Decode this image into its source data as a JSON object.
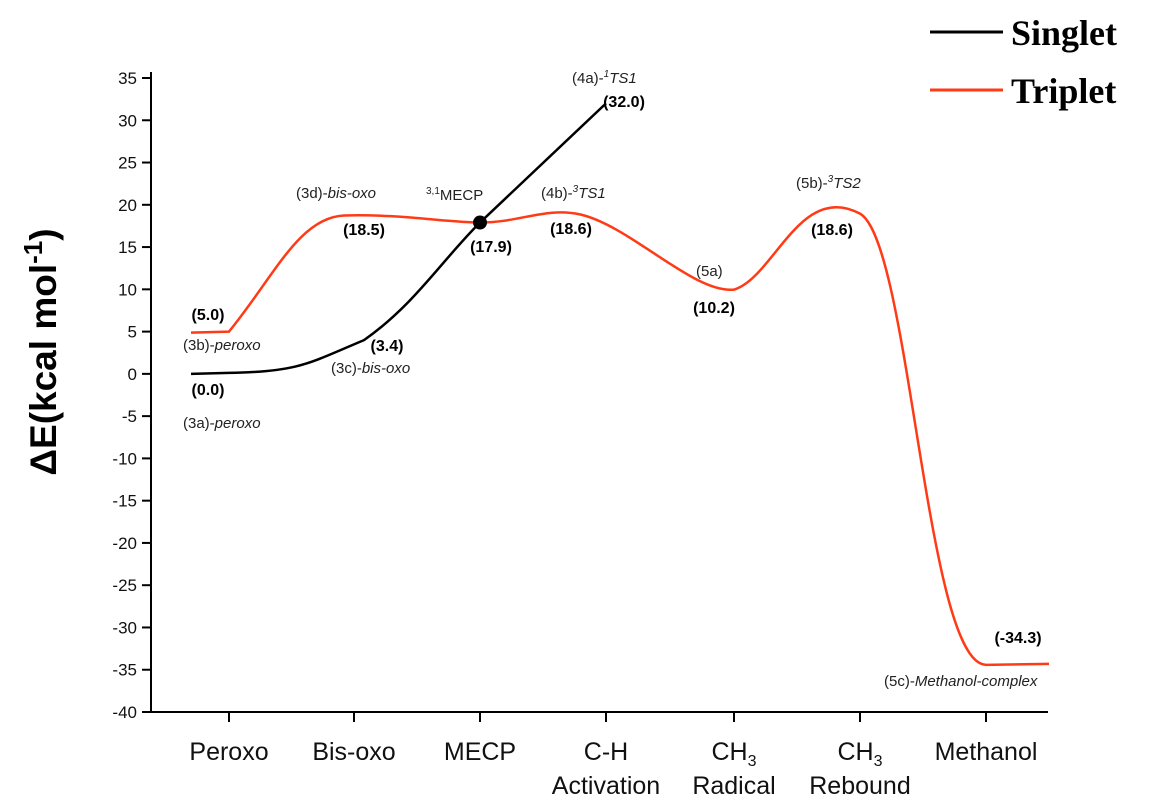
{
  "chart_data": {
    "type": "line",
    "title": "",
    "ylabel": {
      "main": "ΔE(kcal mol",
      "sup": "-1",
      "close": ")"
    },
    "xlabel": "",
    "ylim": [
      -40,
      35
    ],
    "yticks": [
      35,
      30,
      25,
      20,
      15,
      10,
      5,
      0,
      -5,
      -10,
      -15,
      -20,
      -25,
      -30,
      -35,
      -40
    ],
    "categories": [
      {
        "lines": [
          "Peroxo"
        ]
      },
      {
        "lines": [
          "Bis-oxo"
        ]
      },
      {
        "lines": [
          "MECP"
        ]
      },
      {
        "lines": [
          "C-H",
          "Activation"
        ]
      },
      {
        "lines": [
          "CH",
          "Radical"
        ],
        "sub": "3"
      },
      {
        "lines": [
          "CH",
          "Rebound"
        ],
        "sub": "3"
      },
      {
        "lines": [
          "Methanol"
        ]
      }
    ],
    "legend": {
      "position": "top-right",
      "entries": [
        {
          "name": "Singlet",
          "color": "#000000"
        },
        {
          "name": "Triplet",
          "color": "#ff3b17"
        }
      ]
    },
    "series": [
      {
        "name": "Singlet",
        "color": "#000000",
        "points": [
          {
            "x": 0,
            "y": 0.0
          },
          {
            "x": 1,
            "y": 3.4
          },
          {
            "x": 2,
            "y": 17.9
          },
          {
            "x": 3,
            "y": 32.0
          }
        ]
      },
      {
        "name": "Triplet",
        "color": "#ff3b17",
        "points": [
          {
            "x": 0,
            "y": 5.0
          },
          {
            "x": 1,
            "y": 18.5
          },
          {
            "x": 2,
            "y": 17.9
          },
          {
            "x": 3,
            "y": 18.6
          },
          {
            "x": 4,
            "y": 10.2
          },
          {
            "x": 5,
            "y": 18.6
          },
          {
            "x": 6,
            "y": -34.3
          }
        ]
      }
    ],
    "mecp_point": {
      "x": 2,
      "y": 17.9
    },
    "annotations": [
      {
        "id": "3a",
        "prefix": "(3a)-",
        "italic": "peroxo",
        "value": "(0.0)"
      },
      {
        "id": "3b",
        "prefix": "(3b)-",
        "italic": "peroxo",
        "value": "(5.0)"
      },
      {
        "id": "3c",
        "prefix": "(3c)-",
        "italic": "bis-oxo",
        "value": "(3.4)"
      },
      {
        "id": "3d",
        "prefix": "(3d)-",
        "italic": "bis-oxo",
        "value": "(18.5)"
      },
      {
        "id": "mecp",
        "sup": "3,1",
        "prefix": "MECP",
        "italic": "",
        "value": "(17.9)"
      },
      {
        "id": "4a",
        "prefix": "(4a)-",
        "sup": "1",
        "italic": "TS1",
        "value": "(32.0)"
      },
      {
        "id": "4b",
        "prefix": "(4b)-",
        "sup": "3",
        "italic": "TS1",
        "value": "(18.6)"
      },
      {
        "id": "5a",
        "prefix": "(5a)",
        "italic": "",
        "value": "(10.2)"
      },
      {
        "id": "5b",
        "prefix": "(5b)-",
        "sup": "3",
        "italic": "TS2",
        "value": "(18.6)"
      },
      {
        "id": "5c",
        "prefix": "(5c)-",
        "italic": "Methanol-complex",
        "value": "(-34.3)"
      }
    ]
  }
}
